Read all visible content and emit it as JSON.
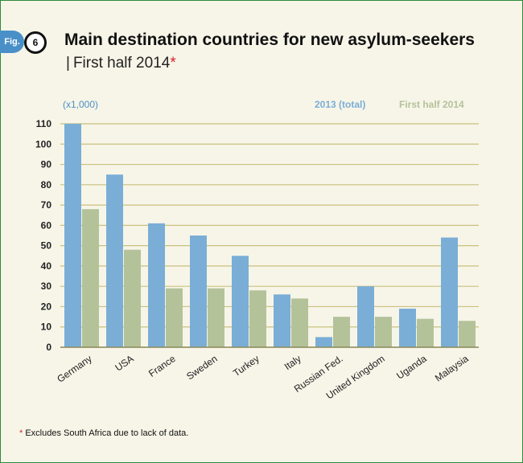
{
  "header": {
    "fig_label": "Fig.",
    "fig_number": "6",
    "title": "Main destination countries for new asylum-seekers",
    "subtitle_separator": "|",
    "subtitle": "First half 2014",
    "subtitle_marker": "*"
  },
  "footnote": {
    "marker": "*",
    "text": "Excludes South Africa due to lack of data."
  },
  "colors": {
    "series_2013": "#7aaed6",
    "series_2014": "#b4c29a",
    "gridline": "#c9c07e",
    "axis_unit": "#4a90c8"
  },
  "chart_data": {
    "type": "bar",
    "unit_label": "(x1,000)",
    "categories": [
      "Germany",
      "USA",
      "France",
      "Sweden",
      "Turkey",
      "Italy",
      "Russian Fed.",
      "United Kingdom",
      "Uganda",
      "Malaysia"
    ],
    "series": [
      {
        "name": "2013 (total)",
        "values": [
          110,
          85,
          61,
          55,
          45,
          26,
          5,
          30,
          19,
          54
        ]
      },
      {
        "name": "First half 2014",
        "values": [
          68,
          48,
          29,
          29,
          28,
          24,
          15,
          15,
          14,
          13
        ]
      }
    ],
    "yticks": [
      0,
      10,
      20,
      30,
      40,
      50,
      60,
      70,
      80,
      90,
      100,
      110
    ],
    "ylim": [
      0,
      110
    ],
    "grid": true,
    "legend_position": "top-right"
  }
}
